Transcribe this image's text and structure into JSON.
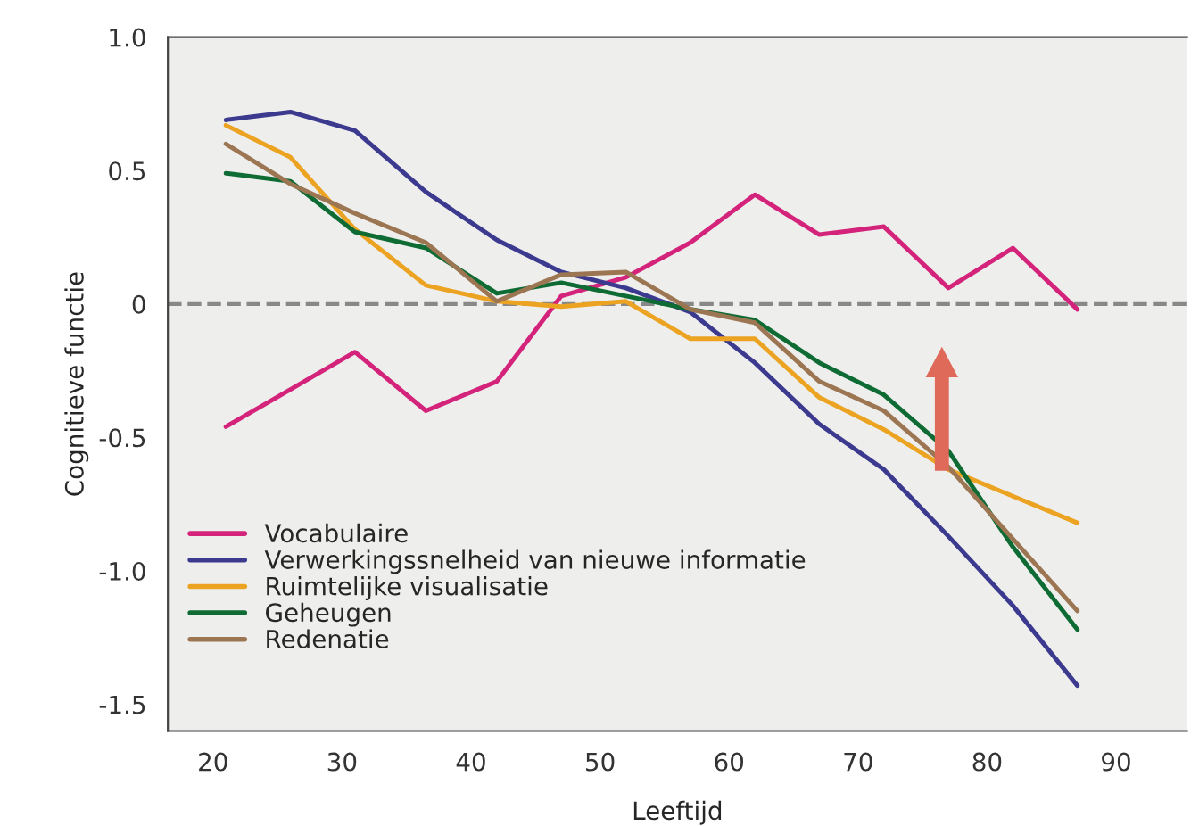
{
  "chart_data": {
    "type": "line",
    "xlabel": "Leeftijd",
    "ylabel": "Cognitieve functie",
    "x": [
      21,
      26,
      31,
      36.5,
      42,
      47,
      52,
      57,
      62,
      67,
      72,
      77,
      82,
      87
    ],
    "series": [
      {
        "name": "Vocabulaire",
        "color": "#d4237a",
        "values": [
          -0.46,
          -0.32,
          -0.18,
          -0.4,
          -0.29,
          0.03,
          0.1,
          0.23,
          0.41,
          0.26,
          0.29,
          0.06,
          0.21,
          -0.02
        ]
      },
      {
        "name": "Verwerkingssnelheid van nieuwe informatie",
        "color": "#3b3a8f",
        "values": [
          0.69,
          0.72,
          0.65,
          0.42,
          0.24,
          0.12,
          0.06,
          -0.03,
          -0.22,
          -0.45,
          -0.62,
          -0.87,
          -1.13,
          -1.43
        ]
      },
      {
        "name": "Ruimtelijke visualisatie",
        "color": "#eba321",
        "values": [
          0.67,
          0.55,
          0.28,
          0.07,
          0.01,
          -0.01,
          0.01,
          -0.13,
          -0.13,
          -0.35,
          -0.47,
          -0.62,
          -0.72,
          -0.82
        ]
      },
      {
        "name": "Geheugen",
        "color": "#0f6b34",
        "values": [
          0.49,
          0.46,
          0.27,
          0.21,
          0.04,
          0.08,
          0.03,
          -0.02,
          -0.06,
          -0.22,
          -0.34,
          -0.55,
          -0.91,
          -1.22
        ]
      },
      {
        "name": "Redenatie",
        "color": "#9c7552",
        "values": [
          0.6,
          0.45,
          0.34,
          0.23,
          0.01,
          0.11,
          0.12,
          -0.02,
          -0.07,
          -0.29,
          -0.4,
          -0.61,
          -0.88,
          -1.15
        ]
      }
    ],
    "xlim": [
      16.5,
      95.5
    ],
    "ylim": [
      -1.6,
      1.0
    ],
    "xticks": [
      20,
      30,
      40,
      50,
      60,
      70,
      80,
      90
    ],
    "yticks": [
      {
        "value": 1.0,
        "label": "1.0"
      },
      {
        "value": 0.5,
        "label": "0.5"
      },
      {
        "value": 0,
        "label": "0"
      },
      {
        "value": -0.5,
        "label": "-0.5"
      },
      {
        "value": -1.0,
        "label": "-1.0"
      },
      {
        "value": -1.5,
        "label": "-1.5"
      }
    ],
    "ref_lines": [
      {
        "axis": "y",
        "value": 0,
        "color": "#888888",
        "line_style": "dashed"
      }
    ],
    "legend": "bottom left",
    "grid": false,
    "line_style": "solid"
  }
}
